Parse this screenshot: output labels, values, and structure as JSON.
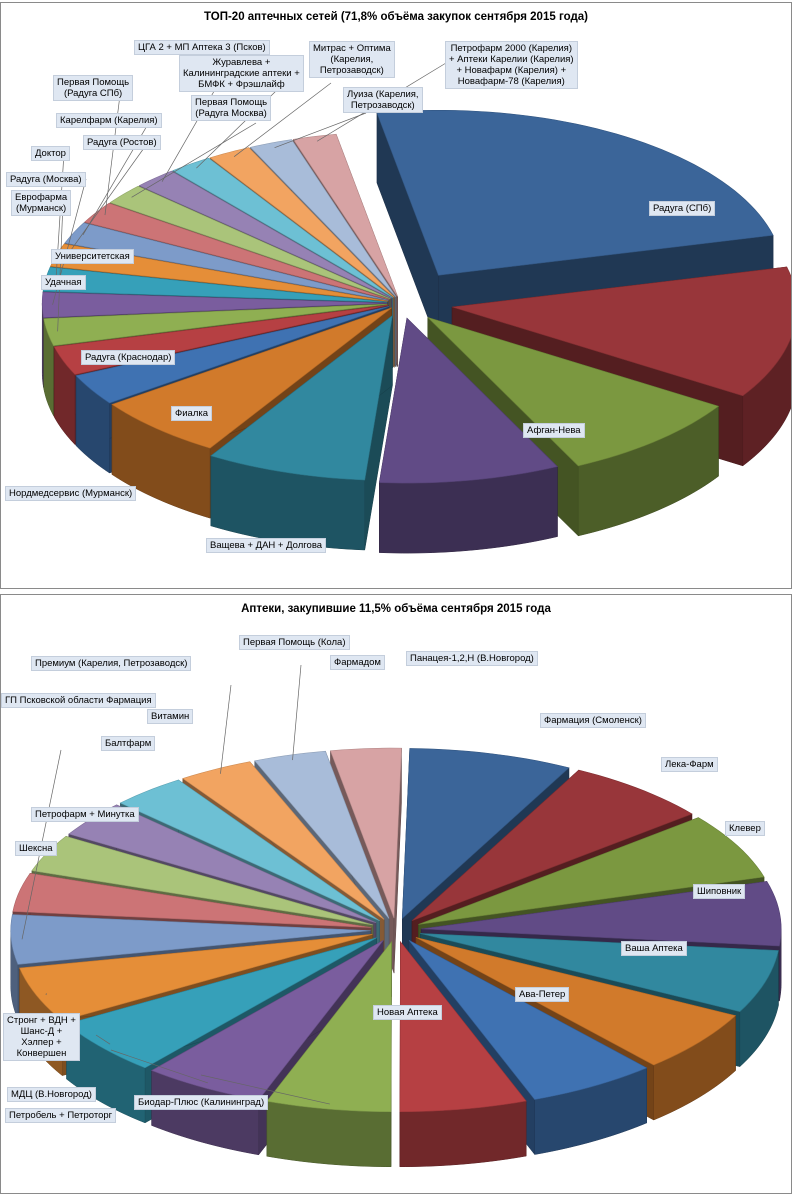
{
  "chart_data": [
    {
      "type": "pie",
      "title": "ТОП-20 аптечных сетей (71,8% объёма закупок сентября 2015 года)",
      "categories": [
        "Радуга (СПб)",
        "Афган-Нева",
        "Ващева + ДАН + Долгова",
        "Фиалка",
        "Нордмедсервис (Мурманск)",
        "Радуга (Краснодар)",
        "Удачная",
        "Университетская",
        "Еврофарма (Мурманск)",
        "Радуга (Москва)",
        "Доктор",
        "Радуга (Ростов)",
        "Карелфарм (Карелия)",
        "Первая Помощь (Радуга СПб)",
        "Первая Помощь (Радуга Москва)",
        "ЦГА 2 + МП Аптека 3 (Псков)",
        "Журавлева + Калининградские аптеки + БМФК + Фрэшлайф",
        "Митрас + Оптима (Карелия, Петрозаводск)",
        "Луиза (Карелия, Петрозаводск)",
        "Петрофарм 2000 (Карелия) + Аптеки Карелии (Карелия) + Новафарм (Карелия) + Новафарм-78 (Карелия)"
      ],
      "values": [
        23.5,
        12.7,
        8.6,
        8.3,
        7.4,
        6.1,
        3.0,
        2.8,
        2.6,
        2.4,
        2.3,
        2.2,
        2.1,
        2.1,
        2.0,
        2.0,
        2.0,
        2.0,
        2.0,
        2.0
      ],
      "colors": [
        "#3b6599",
        "#98363a",
        "#7b9840",
        "#614b86",
        "#31889f",
        "#d17a2b",
        "#3f72b2",
        "#b64043",
        "#8faf52",
        "#7a5d9e",
        "#36a0b9",
        "#e58e38",
        "#7d9bc9",
        "#cc7476",
        "#aac47a",
        "#9682b4",
        "#6dc0d4",
        "#f2a461",
        "#a8bcd9",
        "#d7a3a4"
      ]
    },
    {
      "type": "pie",
      "title": "Аптеки, закупившие 11,5% объёма сентября 2015 года",
      "categories": [
        "Панацея-1,2,Н (В.Новгород)",
        "Фармация (Смоленск)",
        "Лека-Фарм",
        "Клевер",
        "Шиповник",
        "Ваша Аптека",
        "Ава-Петер",
        "Новая Аптека",
        "Биодар-Плюс (Калининград)",
        "Петробель + Петроторг",
        "МДЦ (В.Новгород)",
        "Стронг + ВДН + Шанс-Д + Хэлпер + Конвершен",
        "ГП Псковской области Фармация",
        "Шексна",
        "Петрофарм + Минутка",
        "Балтфарм",
        "Витамин",
        "Премиум (Карелия, Петрозаводск)",
        "Первая Помощь (Кола)",
        "Фармадом"
      ],
      "values": [
        7.2,
        6.4,
        6.2,
        6.0,
        5.9,
        5.8,
        5.7,
        5.6,
        5.5,
        5.4,
        5.3,
        5.2,
        4.6,
        3.6,
        3.5,
        3.4,
        3.3,
        3.3,
        3.2,
        3.1
      ],
      "colors": [
        "#3b6599",
        "#98363a",
        "#7b9840",
        "#614b86",
        "#31889f",
        "#d17a2b",
        "#3f72b2",
        "#b64043",
        "#8faf52",
        "#7a5d9e",
        "#36a0b9",
        "#e58e38",
        "#7d9bc9",
        "#cc7476",
        "#aac47a",
        "#9682b4",
        "#6dc0d4",
        "#f2a461",
        "#a8bcd9",
        "#d7a3a4"
      ]
    }
  ],
  "labels1": [
    "Радуга (СПб)",
    "Афган-Нева",
    "Ващева + ДАН + Долгова",
    "Фиалка",
    "Нордмедсервис (Мурманск)",
    "Радуга (Краснодар)",
    "Удачная",
    "Университетская",
    "Еврофарма\n(Мурманск)",
    "Радуга (Москва)",
    "Доктор",
    "Радуга (Ростов)",
    "Карелфарм (Карелия)",
    "Первая Помощь\n(Радуга СПб)",
    "Первая Помощь\n(Радуга Москва)",
    "ЦГА 2 + МП Аптека 3 (Псков)",
    "Журавлева +\nКалининградские аптеки +\nБМФК + Фрэшлайф",
    "Митрас + Оптима\n(Карелия,\nПетрозаводск)",
    "Луиза (Карелия,\nПетрозаводск)",
    "Петрофарм 2000 (Карелия)\n+ Аптеки Карелии (Карелия)\n+ Новафарм (Карелия) +\nНовафарм-78 (Карелия)"
  ],
  "labels2": [
    "Панацея-1,2,Н (В.Новгород)",
    "Фармация (Смоленск)",
    "Лека-Фарм",
    "Клевер",
    "Шиповник",
    "Ваша Аптека",
    "Ава-Петер",
    "Новая Аптека",
    "Биодар-Плюс (Калининград)",
    "Петробель + Петроторг",
    "МДЦ (В.Новгород)",
    "Стронг + ВДН +\nШанс-Д +\nХэлпер +\nКонвершен",
    "ГП Псковской области Фармация",
    "Шексна",
    "Петрофарм + Минутка",
    "Балтфарм",
    "Витамин",
    "Премиум (Карелия, Петрозаводск)",
    "Первая Помощь (Кола)",
    "Фармадом"
  ]
}
